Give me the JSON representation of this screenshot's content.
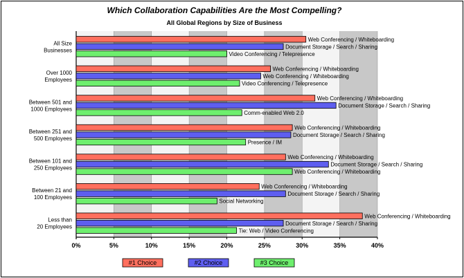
{
  "chart_data": {
    "type": "bar",
    "orientation": "horizontal",
    "title": "Which Collaboration Capabilities Are the Most Compelling?",
    "subtitle": "All Global Regions by Size of Business",
    "xlim": [
      0,
      40
    ],
    "x_ticks": [
      "0%",
      "5%",
      "10%",
      "15%",
      "20%",
      "25%",
      "30%",
      "35%",
      "40%"
    ],
    "grid": true,
    "legend_position": "bottom",
    "series": [
      {
        "name": "#1 Choice",
        "color": "#ff6f5e"
      },
      {
        "name": "#2 Choice",
        "color": "#5e5ef0"
      },
      {
        "name": "#3 Choice",
        "color": "#6eef6e"
      }
    ],
    "categories": [
      {
        "label": "All Size Businesses",
        "bars": [
          {
            "value": 30.5,
            "label": "Web Conferencing / Whiteboarding"
          },
          {
            "value": 27.5,
            "label": "Document Storage / Search / Sharing"
          },
          {
            "value": 20.0,
            "label": "Video Conferencing / Telepresence"
          }
        ]
      },
      {
        "label": "Over 1000 Employees",
        "bars": [
          {
            "value": 25.8,
            "label": "Web Conferencing / Whiteboarding"
          },
          {
            "value": 24.5,
            "label": "Web Conferencing / Whiteboarding"
          },
          {
            "value": 21.7,
            "label": "Video Conferencing / Telepresence"
          }
        ]
      },
      {
        "label": "Between 501 and 1000 Employees",
        "bars": [
          {
            "value": 31.7,
            "label": "Web Conferencing / Whiteboarding"
          },
          {
            "value": 34.5,
            "label": "Document Storage / Search / Sharing"
          },
          {
            "value": 22.0,
            "label": "Comm-enabled Web 2.0"
          }
        ]
      },
      {
        "label": "Between 251 and 500 Employees",
        "bars": [
          {
            "value": 28.7,
            "label": "Web Conferencing / Whiteboarding"
          },
          {
            "value": 28.5,
            "label": "Document Storage / Search / Sharing"
          },
          {
            "value": 22.5,
            "label": "Presence / IM"
          }
        ]
      },
      {
        "label": "Between 101 and 250 Employees",
        "bars": [
          {
            "value": 27.8,
            "label": "Web Conferencing / Whiteboarding"
          },
          {
            "value": 33.5,
            "label": "Document Storage / Search / Sharing"
          },
          {
            "value": 28.7,
            "label": "Web Conferencing / Whiteboarding"
          }
        ]
      },
      {
        "label": "Between 21 and 100 Employees",
        "bars": [
          {
            "value": 24.3,
            "label": "Web Conferencing / Whiteboarding"
          },
          {
            "value": 27.8,
            "label": "Document Storage / Search / Sharing"
          },
          {
            "value": 18.7,
            "label": "Social Networking"
          }
        ]
      },
      {
        "label": "Less than 20 Employees",
        "bars": [
          {
            "value": 38.0,
            "label": "Web Conferencing / Whiteboarding"
          },
          {
            "value": 27.5,
            "label": "Document Storage / Search / Sharing"
          },
          {
            "value": 21.3,
            "label": "Tie: Web / Video Conferencing"
          }
        ]
      }
    ]
  }
}
